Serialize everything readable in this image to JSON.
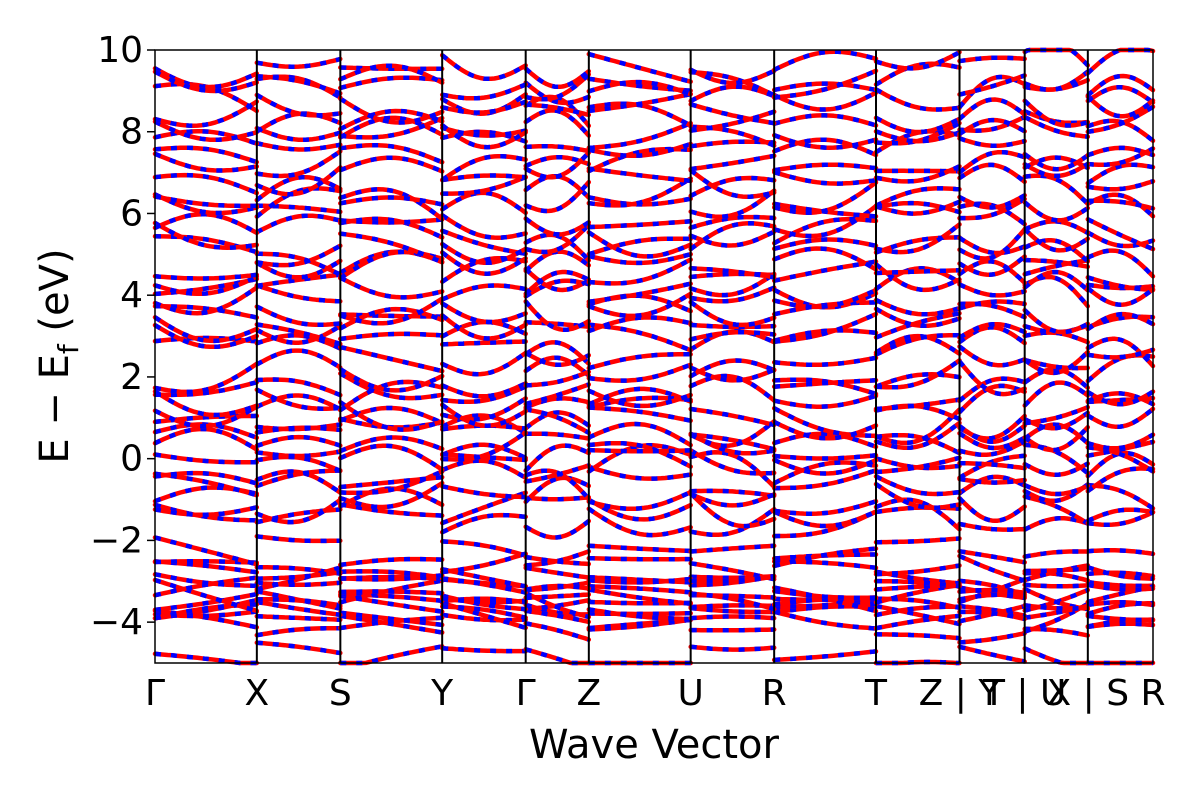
{
  "chart_data": {
    "type": "line",
    "xlabel": "Wave Vector",
    "ylabel_main": "E − E",
    "ylabel_sub": "f",
    "ylabel_unit": " (eV)",
    "ylim": [
      -5,
      10
    ],
    "yticks": [
      -4,
      -2,
      0,
      2,
      4,
      6,
      8,
      10
    ],
    "ytick_labels": [
      "−4",
      "−2",
      "0",
      "2",
      "4",
      "6",
      "8",
      "10"
    ],
    "grid": false,
    "colors": {
      "series_a": "#ff0000",
      "series_b": "#0000ff"
    },
    "kpoints": [
      {
        "label": "Γ",
        "x": 0.0
      },
      {
        "label": "X",
        "x": 1.0
      },
      {
        "label": "S",
        "x": 1.82
      },
      {
        "label": "Y",
        "x": 2.82
      },
      {
        "label": "Γ",
        "x": 3.64
      },
      {
        "label": "Z",
        "x": 4.26
      },
      {
        "label": "U",
        "x": 5.26
      },
      {
        "label": "R",
        "x": 6.08
      },
      {
        "label": "T",
        "x": 7.08
      },
      {
        "label": "Z | Y",
        "x": 7.9
      },
      {
        "label": "T | U",
        "x": 8.54
      },
      {
        "label": "X | S",
        "x": 9.16
      },
      {
        "label": "R",
        "x": 9.8
      }
    ],
    "xlim": [
      0,
      9.8
    ],
    "breaks": [
      7.9,
      8.54,
      9.16
    ],
    "band_energies": [
      [
        -4.9,
        -4.1,
        -3.9,
        -3.75,
        -3.6,
        -3.5,
        -3.35,
        -3.2,
        -3.05,
        -2.9,
        -2.6,
        -2.25
      ],
      [
        -1.5,
        -1.2,
        -0.9,
        -0.6,
        -0.3,
        0.0,
        0.3,
        0.6
      ],
      [
        0.9,
        1.2,
        1.5,
        1.8,
        2.1,
        2.5,
        2.9,
        3.2,
        3.5,
        3.9,
        4.2,
        4.5
      ],
      [
        4.8,
        5.2,
        5.5,
        5.9,
        6.2,
        6.5,
        6.9,
        7.2,
        7.6,
        8.0,
        8.3,
        8.6,
        8.9,
        9.2,
        9.6
      ]
    ]
  }
}
